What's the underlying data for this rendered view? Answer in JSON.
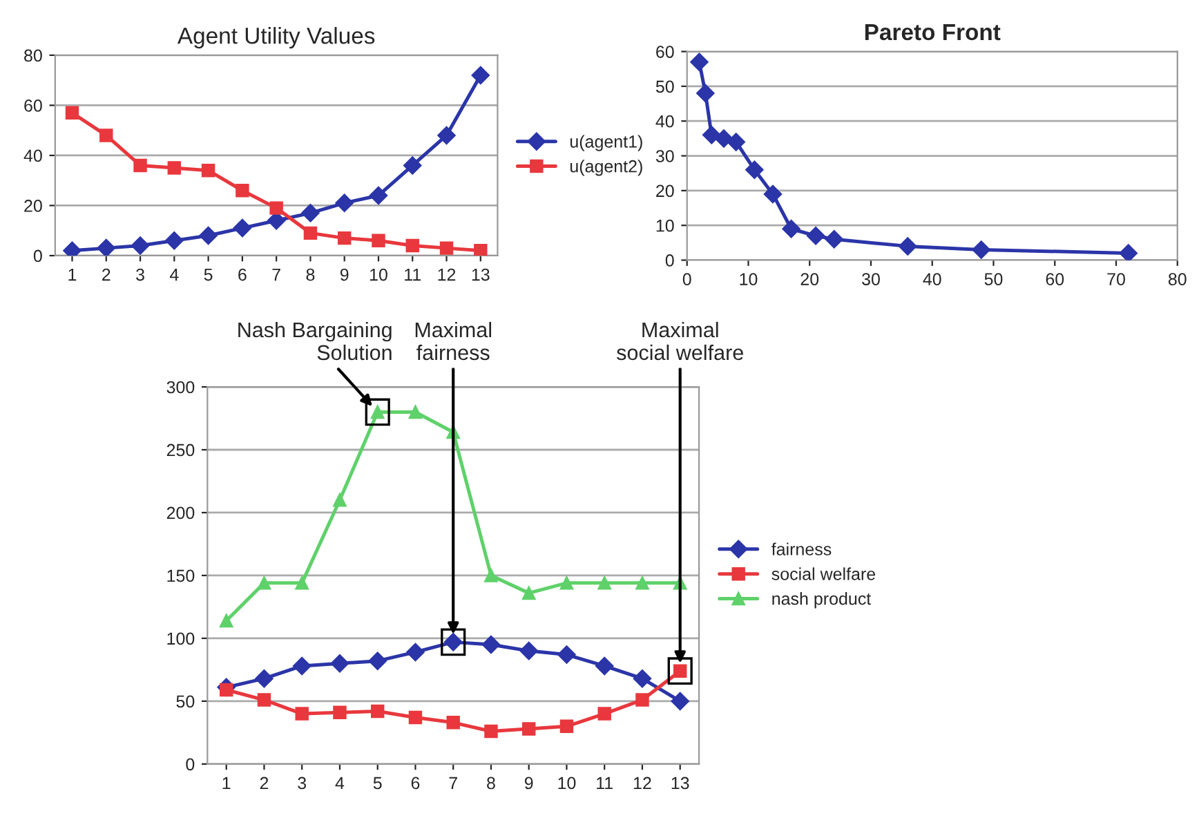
{
  "chart_data": [
    {
      "type": "line",
      "title": "Agent Utility Values",
      "categories": [
        "1",
        "2",
        "3",
        "4",
        "5",
        "6",
        "7",
        "8",
        "9",
        "10",
        "11",
        "12",
        "13"
      ],
      "ylim": [
        0,
        80
      ],
      "yticks": [
        0,
        20,
        40,
        60,
        80
      ],
      "grid": "y",
      "legend": "right",
      "series": [
        {
          "name": "u(agent1)",
          "color": "#2b35a8",
          "marker": "diamond",
          "values": [
            2,
            3,
            4,
            6,
            8,
            11,
            14,
            17,
            21,
            24,
            36,
            48,
            72
          ]
        },
        {
          "name": "u(agent2)",
          "color": "#e8383d",
          "marker": "square",
          "values": [
            57,
            48,
            36,
            35,
            34,
            26,
            19,
            9,
            7,
            6,
            4,
            3,
            2
          ]
        }
      ]
    },
    {
      "type": "line",
      "title": "Pareto Front",
      "xlim": [
        0,
        80
      ],
      "xticks": [
        0,
        10,
        20,
        30,
        40,
        50,
        60,
        70,
        80
      ],
      "ylim": [
        0,
        60
      ],
      "yticks": [
        0,
        10,
        20,
        30,
        40,
        50,
        60
      ],
      "grid": "y",
      "marker": "diamond",
      "series": [
        {
          "color": "#2b35a8",
          "x": [
            2,
            3,
            4,
            6,
            8,
            11,
            14,
            17,
            21,
            24,
            36,
            48,
            72
          ],
          "values": [
            57,
            48,
            36,
            35,
            34,
            26,
            19,
            9,
            7,
            6,
            4,
            3,
            2
          ]
        }
      ]
    },
    {
      "type": "line",
      "categories": [
        "1",
        "2",
        "3",
        "4",
        "5",
        "6",
        "7",
        "8",
        "9",
        "10",
        "11",
        "12",
        "13"
      ],
      "ylim": [
        0,
        300
      ],
      "yticks": [
        0,
        50,
        100,
        150,
        200,
        250,
        300
      ],
      "grid": "y",
      "legend": "right",
      "series": [
        {
          "name": "fairness",
          "color": "#2b35a8",
          "marker": "diamond",
          "values": [
            61,
            68,
            78,
            80,
            82,
            89,
            97,
            95,
            90,
            87,
            78,
            68,
            50
          ]
        },
        {
          "name": "social welfare",
          "color": "#e8383d",
          "marker": "square",
          "values": [
            59,
            51,
            40,
            41,
            42,
            37,
            33,
            26,
            28,
            30,
            40,
            51,
            74
          ]
        },
        {
          "name": "nash product",
          "color": "#5fd16a",
          "marker": "triangle",
          "values": [
            114,
            144,
            144,
            210,
            280,
            280,
            264,
            150,
            136,
            144,
            144,
            144,
            144
          ]
        }
      ],
      "annotations": [
        {
          "text": "Nash Bargaining\nSolution",
          "x": "5",
          "y": 280
        },
        {
          "text": "Maximal\nfairness",
          "x": "7",
          "y": 97
        },
        {
          "text": "Maximal\nsocial welfare",
          "x": "13",
          "y": 74
        }
      ]
    }
  ]
}
